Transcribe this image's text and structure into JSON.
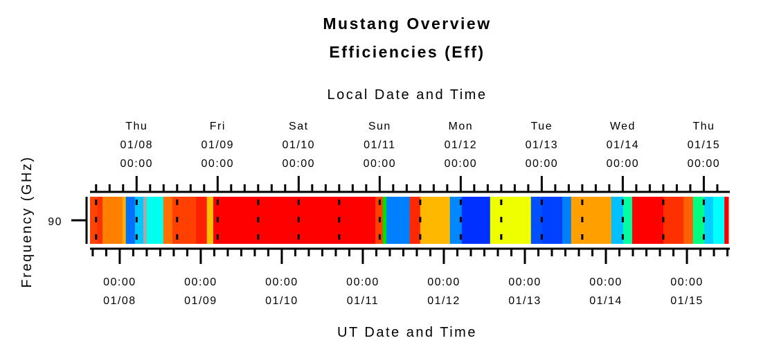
{
  "chart_data": {
    "type": "heatmap",
    "title": "Mustang Overview",
    "subtitle": "Efficiencies (Eff)",
    "top_axis_label": "Local Date and Time",
    "xlabel": "UT Date and Time",
    "ylabel": "Frequency (GHz)",
    "y_categories": [
      "90"
    ],
    "x_unit": "hours since 01/08 00:00 UT",
    "xlim": [
      -8.8,
      180.3
    ],
    "local_offset_hours": -5,
    "top_ticks": [
      {
        "day": "Thu",
        "date": "01/08",
        "time": "00:00"
      },
      {
        "day": "Fri",
        "date": "01/09",
        "time": "00:00"
      },
      {
        "day": "Sat",
        "date": "01/10",
        "time": "00:00"
      },
      {
        "day": "Sun",
        "date": "01/11",
        "time": "00:00"
      },
      {
        "day": "Mon",
        "date": "01/12",
        "time": "00:00"
      },
      {
        "day": "Tue",
        "date": "01/13",
        "time": "00:00"
      },
      {
        "day": "Wed",
        "date": "01/14",
        "time": "00:00"
      },
      {
        "day": "Thu",
        "date": "01/15",
        "time": "00:00"
      }
    ],
    "bottom_ticks": [
      {
        "time": "00:00",
        "date": "01/08"
      },
      {
        "time": "00:00",
        "date": "01/09"
      },
      {
        "time": "00:00",
        "date": "01/10"
      },
      {
        "time": "00:00",
        "date": "01/11"
      },
      {
        "time": "00:00",
        "date": "01/12"
      },
      {
        "time": "00:00",
        "date": "01/13"
      },
      {
        "time": "00:00",
        "date": "01/14"
      },
      {
        "time": "00:00",
        "date": "01/15"
      }
    ],
    "segments": [
      {
        "start": -8.8,
        "end": -6.6,
        "color": "#ff4400"
      },
      {
        "start": -6.6,
        "end": -5.1,
        "color": "#ff3000"
      },
      {
        "start": -5.1,
        "end": 0.8,
        "color": "#ff8000"
      },
      {
        "start": 0.8,
        "end": 1.8,
        "color": "#ffb000"
      },
      {
        "start": 1.8,
        "end": 4.5,
        "color": "#0070ff"
      },
      {
        "start": 4.5,
        "end": 7.0,
        "color": "#00c8ff"
      },
      {
        "start": 7.0,
        "end": 8.0,
        "color": "#a8a8a8"
      },
      {
        "start": 8.0,
        "end": 12.9,
        "color": "#00ffee"
      },
      {
        "start": 12.9,
        "end": 15.6,
        "color": "#ff7000"
      },
      {
        "start": 15.6,
        "end": 22.6,
        "color": "#ff4000"
      },
      {
        "start": 22.6,
        "end": 25.8,
        "color": "#ff2000"
      },
      {
        "start": 25.8,
        "end": 27.7,
        "color": "#ffc000"
      },
      {
        "start": 27.7,
        "end": 75.7,
        "color": "#ff0000"
      },
      {
        "start": 75.7,
        "end": 77.9,
        "color": "#ff4000"
      },
      {
        "start": 77.9,
        "end": 79.0,
        "color": "#00e000"
      },
      {
        "start": 79.0,
        "end": 85.9,
        "color": "#0080ff"
      },
      {
        "start": 85.9,
        "end": 89.0,
        "color": "#ff2800"
      },
      {
        "start": 89.0,
        "end": 97.8,
        "color": "#ffb800"
      },
      {
        "start": 97.8,
        "end": 101.3,
        "color": "#0088ff"
      },
      {
        "start": 101.3,
        "end": 109.7,
        "color": "#0030ff"
      },
      {
        "start": 109.7,
        "end": 121.8,
        "color": "#f0ff00"
      },
      {
        "start": 121.8,
        "end": 125.1,
        "color": "#0050ff"
      },
      {
        "start": 125.1,
        "end": 131.1,
        "color": "#0040ff"
      },
      {
        "start": 131.1,
        "end": 133.7,
        "color": "#0080ff"
      },
      {
        "start": 133.7,
        "end": 145.6,
        "color": "#ffa000"
      },
      {
        "start": 145.6,
        "end": 149.1,
        "color": "#00c0ff"
      },
      {
        "start": 149.1,
        "end": 151.8,
        "color": "#00ffa0"
      },
      {
        "start": 151.8,
        "end": 161.0,
        "color": "#ff0000"
      },
      {
        "start": 161.0,
        "end": 167.0,
        "color": "#ff3000"
      },
      {
        "start": 167.0,
        "end": 169.8,
        "color": "#ff6000"
      },
      {
        "start": 169.8,
        "end": 173.1,
        "color": "#00ff80"
      },
      {
        "start": 173.1,
        "end": 175.8,
        "color": "#00d0ff"
      },
      {
        "start": 175.8,
        "end": 179.1,
        "color": "#00ffff"
      },
      {
        "start": 179.1,
        "end": 180.3,
        "color": "#ff0000"
      }
    ]
  }
}
